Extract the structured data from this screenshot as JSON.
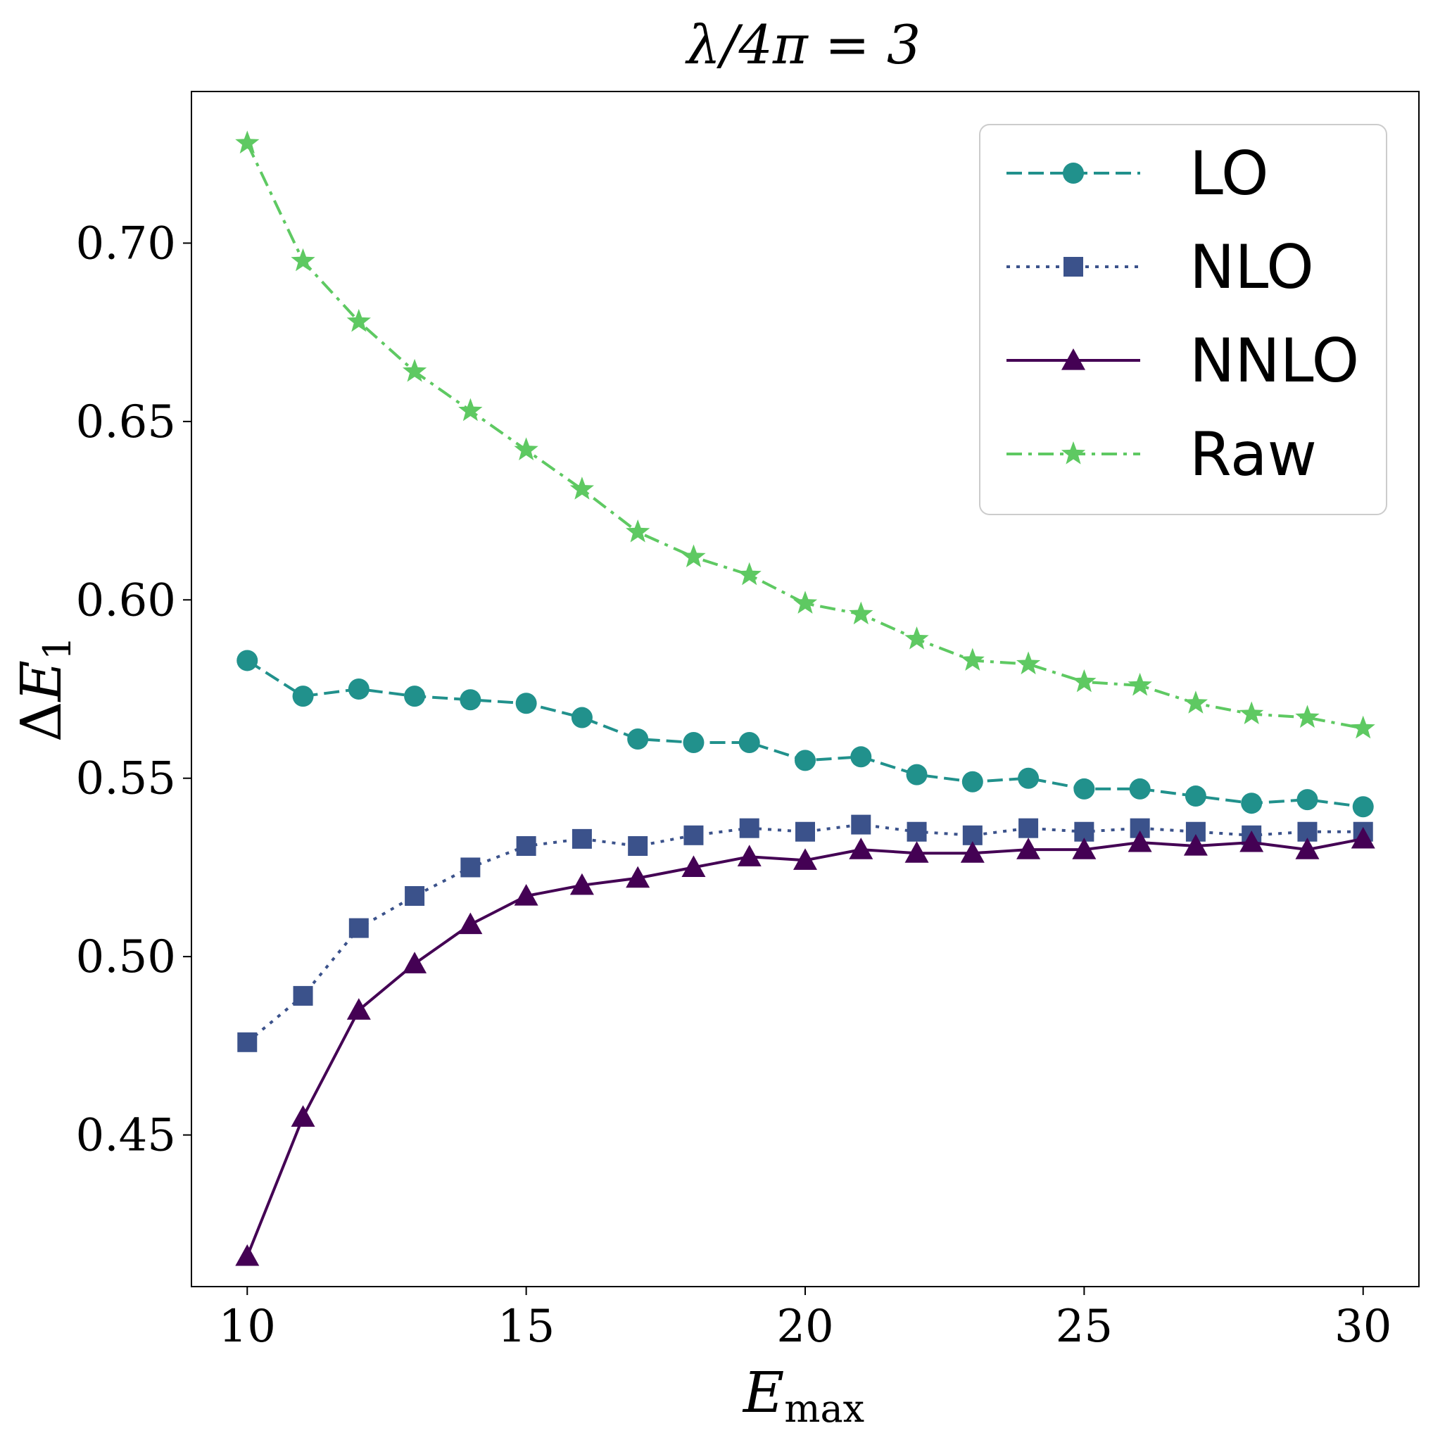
{
  "chart_data": {
    "type": "line",
    "title": "λ/4π = 3",
    "xlabel": "E_max",
    "ylabel": "ΔE_1",
    "xlim": [
      9,
      31
    ],
    "ylim": [
      0.4075,
      0.7425
    ],
    "xticks": [
      10,
      15,
      20,
      25,
      30
    ],
    "xtick_labels": [
      "10",
      "15",
      "20",
      "25",
      "30"
    ],
    "yticks": [
      0.45,
      0.5,
      0.55,
      0.6,
      0.65,
      0.7
    ],
    "ytick_labels": [
      "0.45",
      "0.50",
      "0.55",
      "0.60",
      "0.65",
      "0.70"
    ],
    "grid": false,
    "legend_position": "top-right",
    "x": [
      10,
      11,
      12,
      13,
      14,
      15,
      16,
      17,
      18,
      19,
      20,
      21,
      22,
      23,
      24,
      25,
      26,
      27,
      28,
      29,
      30
    ],
    "series": [
      {
        "name": "LO",
        "color": "#21918c",
        "dash": "dashed",
        "marker": "circle",
        "values": [
          0.583,
          0.573,
          0.575,
          0.573,
          0.572,
          0.571,
          0.567,
          0.561,
          0.56,
          0.56,
          0.555,
          0.556,
          0.551,
          0.549,
          0.55,
          0.547,
          0.547,
          0.545,
          0.543,
          0.544,
          0.542
        ]
      },
      {
        "name": "NLO",
        "color": "#3b528b",
        "dash": "dotted",
        "marker": "square",
        "values": [
          0.476,
          0.489,
          0.508,
          0.517,
          0.525,
          0.531,
          0.533,
          0.531,
          0.534,
          0.536,
          0.535,
          0.537,
          0.535,
          0.534,
          0.536,
          0.535,
          0.536,
          0.535,
          0.534,
          0.535,
          0.535
        ]
      },
      {
        "name": "NNLO",
        "color": "#440154",
        "dash": "solid",
        "marker": "triangle",
        "values": [
          0.416,
          0.455,
          0.485,
          0.498,
          0.509,
          0.517,
          0.52,
          0.522,
          0.525,
          0.528,
          0.527,
          0.53,
          0.529,
          0.529,
          0.53,
          0.53,
          0.532,
          0.531,
          0.532,
          0.53,
          0.533
        ]
      },
      {
        "name": "Raw",
        "color": "#5ec962",
        "dash": "dashdot",
        "marker": "star",
        "values": [
          0.728,
          0.695,
          0.678,
          0.664,
          0.653,
          0.642,
          0.631,
          0.619,
          0.612,
          0.607,
          0.599,
          0.596,
          0.589,
          0.583,
          0.582,
          0.577,
          0.576,
          0.571,
          0.568,
          0.567,
          0.564
        ]
      }
    ]
  }
}
